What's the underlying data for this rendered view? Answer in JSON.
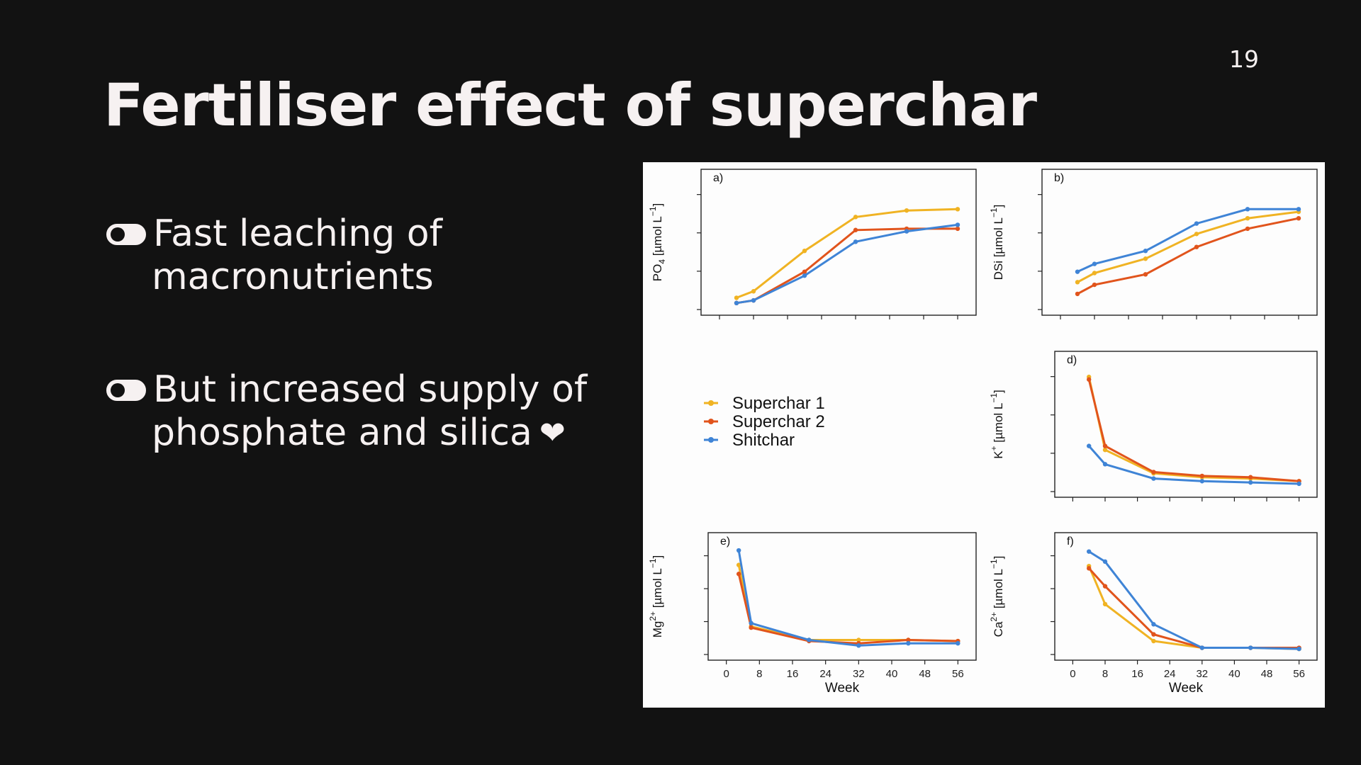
{
  "slide": {
    "page_number": "19",
    "title": "Fertiliser effect of superchar",
    "bullets": [
      {
        "line1": "Fast leaching of",
        "line2": "macronutrients",
        "icon": "toggle-icon"
      },
      {
        "line1": "But increased supply of",
        "line2": "phosphate and silica",
        "icon": "toggle-icon",
        "trailing_icon": "heart-icon",
        "trailing_glyph": "❤"
      }
    ]
  },
  "chart_data": {
    "type": "line",
    "x_label": "Week",
    "x_ticks": [
      0,
      8,
      16,
      24,
      32,
      40,
      48,
      56
    ],
    "xlim": [
      -2,
      58
    ],
    "legend": [
      {
        "name": "Superchar 1",
        "color": "#f0b323"
      },
      {
        "name": "Superchar 2",
        "color": "#e1541c"
      },
      {
        "name": "Shitchar",
        "color": "#3f84d6"
      }
    ],
    "panels": [
      {
        "id": "a",
        "label": "a)",
        "ylabel_base": "PO",
        "ylabel_sub": "4",
        "ylabel_unit": " [µmol L",
        "ylabel_exp": "−1",
        "ylabel_end": "]",
        "ylim": [
          0,
          100
        ],
        "series": [
          {
            "name": "Superchar 1",
            "x": [
              4,
              8,
              20,
              32,
              44,
              56
            ],
            "y": [
              9,
              14,
              45,
              71,
              76,
              77
            ]
          },
          {
            "name": "Superchar 2",
            "x": [
              4,
              8,
              20,
              32,
              44,
              56
            ],
            "y": [
              5,
              7,
              29,
              61,
              62,
              62
            ]
          },
          {
            "name": "Shitchar",
            "x": [
              4,
              8,
              20,
              32,
              44,
              56
            ],
            "y": [
              5,
              7,
              26,
              52,
              60,
              65
            ]
          }
        ]
      },
      {
        "id": "b",
        "label": "b)",
        "ylabel_base": "DSi",
        "ylabel_sub": "",
        "ylabel_unit": " [µmol L",
        "ylabel_exp": "−1",
        "ylabel_end": "]",
        "ylim": [
          0,
          100
        ],
        "series": [
          {
            "name": "Superchar 1",
            "x": [
              4,
              8,
              20,
              32,
              44,
              56
            ],
            "y": [
              21,
              28,
              39,
              58,
              70,
              75
            ]
          },
          {
            "name": "Superchar 2",
            "x": [
              4,
              8,
              20,
              32,
              44,
              56
            ],
            "y": [
              12,
              19,
              27,
              48,
              62,
              70
            ]
          },
          {
            "name": "Shitchar",
            "x": [
              4,
              8,
              20,
              32,
              44,
              56
            ],
            "y": [
              29,
              35,
              45,
              66,
              77,
              77
            ]
          }
        ]
      },
      {
        "id": "d",
        "label": "d)",
        "ylabel_base": "K",
        "ylabel_sub": "",
        "ylabel_sup": "+",
        "ylabel_unit": " [µmol L",
        "ylabel_exp": "−1",
        "ylabel_end": "]",
        "ylim": [
          0,
          100
        ],
        "series": [
          {
            "name": "Superchar 1",
            "x": [
              4,
              8,
              20,
              32,
              44,
              56
            ],
            "y": [
              88,
              32,
              14,
              11,
              10,
              8
            ]
          },
          {
            "name": "Superchar 2",
            "x": [
              4,
              8,
              20,
              32,
              44,
              56
            ],
            "y": [
              86,
              35,
              15,
              12,
              11,
              8
            ]
          },
          {
            "name": "Shitchar",
            "x": [
              4,
              8,
              20,
              32,
              44,
              56
            ],
            "y": [
              35,
              21,
              10,
              8,
              7,
              6
            ]
          }
        ]
      },
      {
        "id": "e",
        "label": "e)",
        "ylabel_base": "Mg",
        "ylabel_sub": "",
        "ylabel_sup": "2+",
        "ylabel_unit": " [µmol L",
        "ylabel_exp": "−1",
        "ylabel_end": "]",
        "ylim": [
          0,
          100
        ],
        "show_x_ticks": true,
        "series": [
          {
            "name": "Superchar 1",
            "x": [
              3,
              6,
              20,
              32,
              44,
              56
            ],
            "y": [
              80,
              25,
              13,
              13,
              13,
              12
            ]
          },
          {
            "name": "Superchar 2",
            "x": [
              3,
              6,
              20,
              32,
              44,
              56
            ],
            "y": [
              72,
              24,
              12,
              10,
              13,
              12
            ]
          },
          {
            "name": "Shitchar",
            "x": [
              3,
              6,
              20,
              32,
              44,
              56
            ],
            "y": [
              93,
              28,
              13,
              8,
              10,
              10
            ]
          }
        ]
      },
      {
        "id": "f",
        "label": "f)",
        "ylabel_base": "Ca",
        "ylabel_sub": "",
        "ylabel_sup": "2+",
        "ylabel_unit": " [µmol L",
        "ylabel_exp": "−1",
        "ylabel_end": "]",
        "ylim": [
          0,
          100
        ],
        "show_x_ticks": true,
        "series": [
          {
            "name": "Superchar 1",
            "x": [
              4,
              8,
              20,
              32,
              44,
              56
            ],
            "y": [
              79,
              45,
              12,
              6,
              6,
              5
            ]
          },
          {
            "name": "Superchar 2",
            "x": [
              4,
              8,
              20,
              32,
              44,
              56
            ],
            "y": [
              77,
              61,
              18,
              6,
              6,
              6
            ]
          },
          {
            "name": "Shitchar",
            "x": [
              4,
              8,
              20,
              32,
              44,
              56
            ],
            "y": [
              92,
              83,
              27,
              6,
              6,
              5
            ]
          }
        ]
      }
    ]
  }
}
